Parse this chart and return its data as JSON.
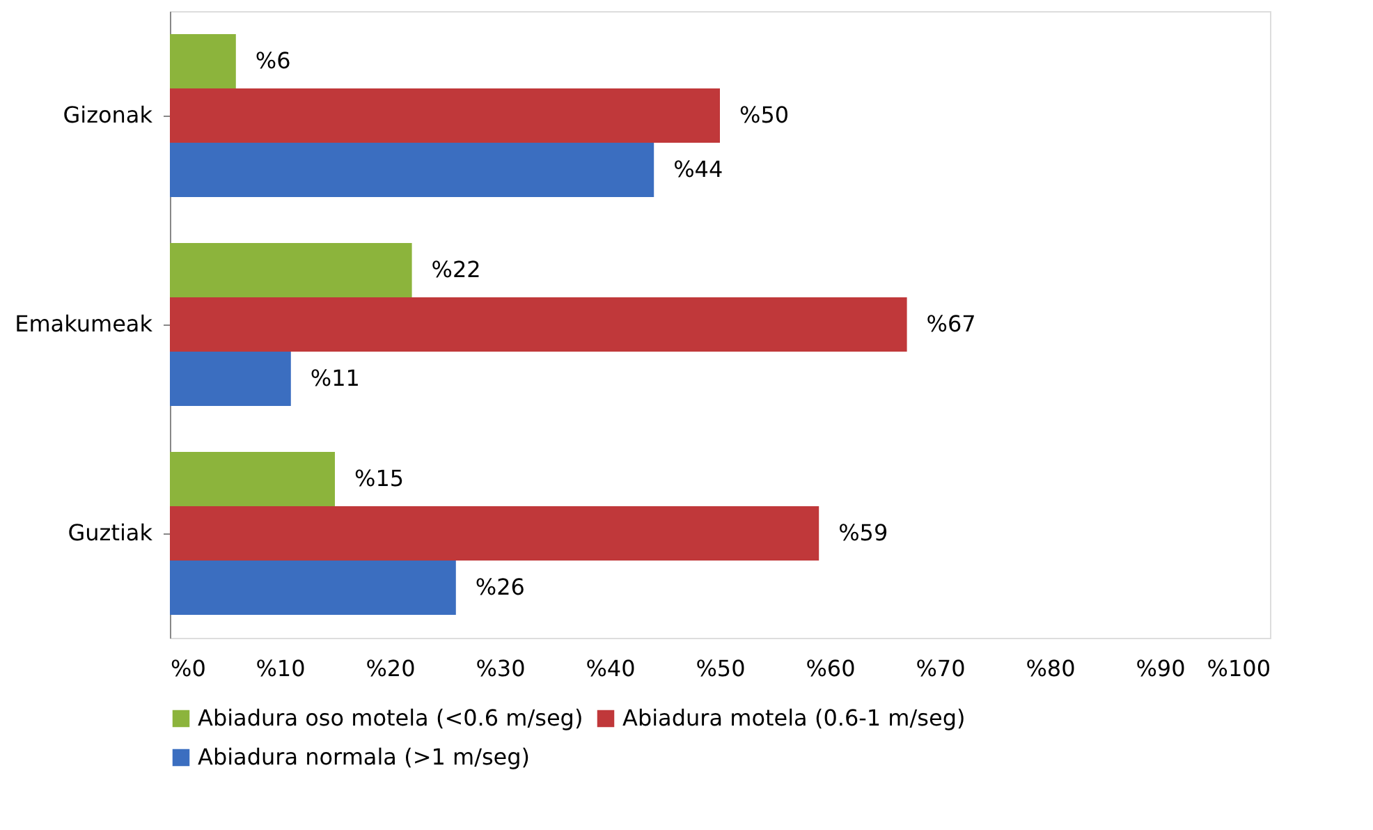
{
  "chart_data": {
    "type": "bar",
    "orientation": "horizontal",
    "categories": [
      "Gizonak",
      "Emakumeak",
      "Guztiak"
    ],
    "series": [
      {
        "name": "Abiadura oso motela (<0.6 m/seg)",
        "color": "#8cb43c",
        "values": [
          6,
          22,
          15
        ],
        "value_labels": [
          "%6",
          "%22",
          "%15"
        ]
      },
      {
        "name": "Abiadura motela (0.6-1 m/seg)",
        "color": "#c0383a",
        "values": [
          50,
          67,
          59
        ],
        "value_labels": [
          "%50",
          "%67",
          "%59"
        ]
      },
      {
        "name": "Abiadura normala (>1 m/seg)",
        "color": "#3b6ec0",
        "values": [
          44,
          11,
          26
        ],
        "value_labels": [
          "%44",
          "%11",
          "%26"
        ]
      }
    ],
    "xlim": [
      0,
      100
    ],
    "xticks": [
      {
        "value": 0,
        "label": "%0"
      },
      {
        "value": 10,
        "label": "%10"
      },
      {
        "value": 20,
        "label": "%20"
      },
      {
        "value": 30,
        "label": "%30"
      },
      {
        "value": 40,
        "label": "%40"
      },
      {
        "value": 50,
        "label": "%50"
      },
      {
        "value": 60,
        "label": "%60"
      },
      {
        "value": 70,
        "label": "%70"
      },
      {
        "value": 80,
        "label": "%80"
      },
      {
        "value": 90,
        "label": "%90"
      },
      {
        "value": 100,
        "label": "%100"
      }
    ],
    "grid": false,
    "legend": "bottom"
  }
}
